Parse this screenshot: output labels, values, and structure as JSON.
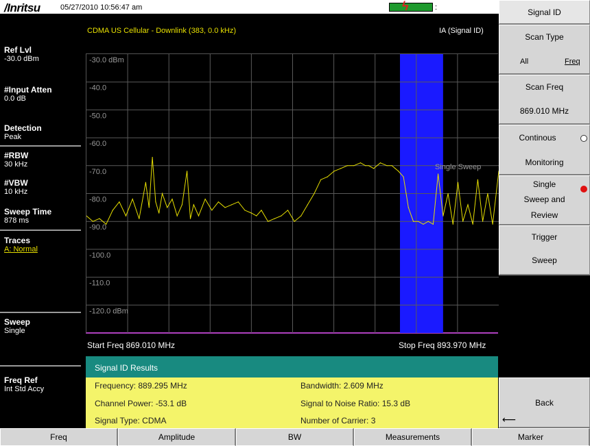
{
  "header": {
    "logo": "/Inritsu",
    "datetime": "05/27/2010 10:56:47 am",
    "battery_icon": "battery-charging-icon"
  },
  "plot_header": {
    "left": "CDMA US Cellular - Downlink (383, 0.0 kHz)",
    "right": "IA (Signal ID)"
  },
  "params": {
    "ref_lvl": {
      "title": "Ref Lvl",
      "value": "-30.0 dBm"
    },
    "input_atten": {
      "title": "#Input Atten",
      "value": "0.0 dB"
    },
    "detection": {
      "title": "Detection",
      "value": "Peak"
    },
    "rbw": {
      "title": "#RBW",
      "value": "30 kHz"
    },
    "vbw": {
      "title": "#VBW",
      "value": "10 kHz"
    },
    "sweep_time": {
      "title": "Sweep Time",
      "value": "878 ms"
    },
    "traces": {
      "title": "Traces",
      "value": "A: Normal"
    },
    "sweep": {
      "title": "Sweep",
      "value": "Single"
    },
    "freq_ref": {
      "title": "Freq Ref",
      "value": "Int Std Accy"
    }
  },
  "chart_data": {
    "type": "line",
    "y_labels": [
      "-30.0 dBm",
      "-40.0",
      "-50.0",
      "-60.0",
      "-70.0",
      "-80.0",
      "-90.0",
      "-100.0",
      "-110.0",
      "-120.0 dBm"
    ],
    "ylim": [
      -130,
      -30
    ],
    "xlim": [
      869.01,
      893.97
    ],
    "x_unit": "MHz",
    "grid": true,
    "annotation": "Single Sweep",
    "highlight_band_mhz": [
      887.99,
      890.6
    ],
    "highlight_color": "#1a1aff",
    "trace_color": "#e8e000",
    "series": [
      {
        "x": [
          869.01,
          869.4,
          869.8,
          870.2,
          870.6,
          871.0,
          871.4,
          871.8,
          872.2,
          872.6,
          872.8,
          873.0,
          873.2,
          873.4,
          873.6,
          873.9,
          874.2,
          874.5,
          874.8,
          875.1,
          875.3,
          875.5,
          875.8,
          876.2,
          876.6,
          877.0,
          877.4,
          877.8,
          878.2,
          878.6,
          879.0,
          879.3,
          879.6,
          880.0,
          880.4,
          880.8,
          881.2,
          881.6,
          882.0,
          882.4,
          882.8,
          883.2,
          883.6,
          884.0,
          884.4,
          884.8,
          885.2,
          885.6,
          885.9,
          886.1,
          886.4,
          886.8,
          887.2,
          887.5,
          887.7,
          887.9,
          888.2,
          888.5,
          888.8,
          889.1,
          889.4,
          889.7,
          890.0,
          890.3,
          890.6,
          890.9,
          891.2,
          891.5,
          891.8,
          892.1,
          892.4,
          892.7,
          893.0,
          893.3,
          893.6,
          893.97
        ],
        "values": [
          -88,
          -90,
          -89,
          -91,
          -86,
          -83,
          -88,
          -82,
          -89,
          -76,
          -85,
          -67,
          -83,
          -87,
          -80,
          -85,
          -82,
          -88,
          -84,
          -72,
          -89,
          -84,
          -88,
          -82,
          -86,
          -83,
          -85,
          -84,
          -83,
          -86,
          -87,
          -88,
          -86,
          -90,
          -89,
          -88,
          -86,
          -90,
          -88,
          -84,
          -80,
          -75,
          -74,
          -72,
          -71,
          -70,
          -70,
          -69,
          -70,
          -70,
          -71,
          -69,
          -70,
          -70,
          -71,
          -72,
          -74,
          -85,
          -90,
          -90,
          -91,
          -90,
          -91,
          -73,
          -88,
          -80,
          -91,
          -76,
          -90,
          -84,
          -91,
          -75,
          -90,
          -80,
          -91,
          -72
        ]
      }
    ]
  },
  "axis": {
    "start": "Start Freq 869.010 MHz",
    "stop": "Stop Freq 893.970 MHz"
  },
  "results": {
    "header": "Signal ID Results",
    "frequency": "Frequency: 889.295 MHz",
    "bandwidth": "Bandwidth: 2.609 MHz",
    "channel_power": "Channel Power: -53.1 dB",
    "snr": "Signal to Noise Ratio: 15.3 dB",
    "signal_type": "Signal Type: CDMA",
    "carriers": "Number of Carrier: 3"
  },
  "softkeys": {
    "title": "Signal ID",
    "scan_type": {
      "label": "Scan Type",
      "opt_all": "All",
      "opt_freq": "Freq"
    },
    "scan_freq": {
      "label": "Scan Freq",
      "value": "869.010 MHz"
    },
    "continuous": {
      "line1": "Continous",
      "line2": "Monitoring"
    },
    "single_sweep": {
      "line1": "Single",
      "line2": "Sweep and",
      "line3": "Review"
    },
    "trigger": {
      "line1": "Trigger",
      "line2": "Sweep"
    },
    "back": {
      "label": "Back",
      "icon": "back-arrow-icon"
    }
  },
  "bottom_menu": [
    "Freq",
    "Amplitude",
    "BW",
    "Measurements",
    "Marker"
  ]
}
